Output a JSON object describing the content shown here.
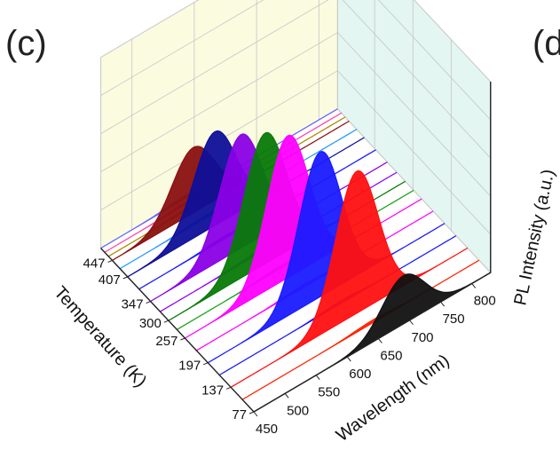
{
  "panel": {
    "label": "(c)",
    "next_label": "(d"
  },
  "chart_data": {
    "type": "area",
    "title": "",
    "xlabel": "Wavelength (nm)",
    "ylabel": "Temperature (K)",
    "zlabel": "PL Intensity (a.u.)",
    "x_ticks": [
      "450",
      "500",
      "550",
      "600",
      "650",
      "700",
      "750",
      "800"
    ],
    "y_ticks": [
      "77",
      "137",
      "197",
      "257",
      "300",
      "347",
      "407",
      "447"
    ],
    "xlim": [
      450,
      830
    ],
    "ylim": [
      77,
      477
    ],
    "grid": true,
    "colors": {
      "back_wall": "#fbfbe0",
      "right_wall": "#e3f6f1",
      "floor": "#ffffff",
      "grid_line": "#c6c6c6"
    },
    "series": [
      {
        "temperature": 77,
        "peak_nm": 690,
        "width_nm": 34,
        "amplitude": 0.34,
        "color": "#111111"
      },
      {
        "temperature": 107,
        "peak_nm": 660,
        "width_nm": 30,
        "amplitude": 0.02,
        "color": "#ff2200"
      },
      {
        "temperature": 137,
        "peak_nm": 652,
        "width_nm": 34,
        "amplitude": 1.0,
        "color": "#ff1010"
      },
      {
        "temperature": 167,
        "peak_nm": 645,
        "width_nm": 30,
        "amplitude": 0.02,
        "color": "#1a1aff"
      },
      {
        "temperature": 197,
        "peak_nm": 630,
        "width_nm": 34,
        "amplitude": 1.02,
        "color": "#1a1aff"
      },
      {
        "temperature": 227,
        "peak_nm": 620,
        "width_nm": 30,
        "amplitude": 0.02,
        "color": "#ff00ff"
      },
      {
        "temperature": 257,
        "peak_nm": 615,
        "width_nm": 34,
        "amplitude": 1.0,
        "color": "#ff00ff"
      },
      {
        "temperature": 278,
        "peak_nm": 610,
        "width_nm": 30,
        "amplitude": 0.02,
        "color": "#18a018"
      },
      {
        "temperature": 300,
        "peak_nm": 605,
        "width_nm": 34,
        "amplitude": 0.92,
        "color": "#087a08"
      },
      {
        "temperature": 322,
        "peak_nm": 600,
        "width_nm": 30,
        "amplitude": 0.02,
        "color": "#8a00ff"
      },
      {
        "temperature": 347,
        "peak_nm": 595,
        "width_nm": 34,
        "amplitude": 0.8,
        "color": "#8a00e6"
      },
      {
        "temperature": 377,
        "peak_nm": 590,
        "width_nm": 30,
        "amplitude": 0.02,
        "color": "#1a1aff"
      },
      {
        "temperature": 407,
        "peak_nm": 590,
        "width_nm": 34,
        "amplitude": 0.66,
        "color": "#0f0f99"
      },
      {
        "temperature": 427,
        "peak_nm": 585,
        "width_nm": 30,
        "amplitude": 0.02,
        "color": "#2299ff"
      },
      {
        "temperature": 447,
        "peak_nm": 580,
        "width_nm": 34,
        "amplitude": 0.46,
        "color": "#8a1010"
      },
      {
        "temperature": 457,
        "peak_nm": 585,
        "width_nm": 30,
        "amplitude": 0.02,
        "color": "#aa8800"
      },
      {
        "temperature": 467,
        "peak_nm": 585,
        "width_nm": 30,
        "amplitude": 0.02,
        "color": "#ff44aa"
      },
      {
        "temperature": 477,
        "peak_nm": 585,
        "width_nm": 30,
        "amplitude": 0.02,
        "color": "#6666ff"
      }
    ]
  }
}
